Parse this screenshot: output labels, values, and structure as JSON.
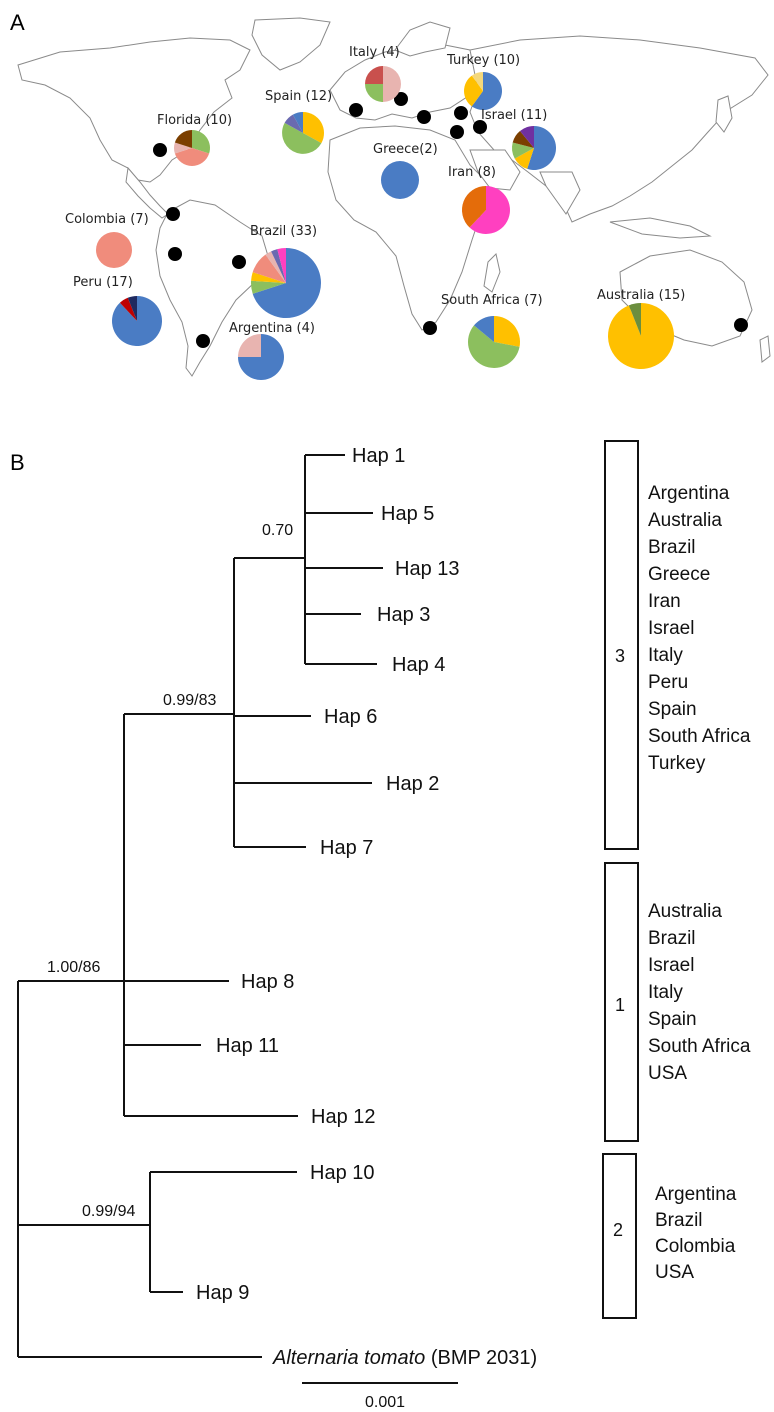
{
  "panel_a": {
    "letter": "A",
    "regions": [
      {
        "id": "italy",
        "label": "Italy (4)",
        "slices": [
          [
            "#e8b4b0",
            0.5
          ],
          [
            "#8cbf5e",
            0.25
          ],
          [
            "#c9504d",
            0.25
          ]
        ]
      },
      {
        "id": "turkey",
        "label": "Turkey (10)",
        "slices": [
          [
            "#4a7cc4",
            0.6
          ],
          [
            "#ffc000",
            0.3
          ],
          [
            "#f4d87b",
            0.1
          ]
        ]
      },
      {
        "id": "spain",
        "label": "Spain (12)",
        "slices": [
          [
            "#ffc000",
            0.33
          ],
          [
            "#8cbf5e",
            0.5
          ],
          [
            "#6a6ab0",
            0.09
          ],
          [
            "#4a7cc4",
            0.08
          ]
        ]
      },
      {
        "id": "florida",
        "label": "Florida (10)",
        "slices": [
          [
            "#8cbf5e",
            0.3
          ],
          [
            "#f08c7c",
            0.4
          ],
          [
            "#e8b4b0",
            0.1
          ],
          [
            "#7b3f00",
            0.2
          ]
        ]
      },
      {
        "id": "israel",
        "label": "Israel (11)",
        "slices": [
          [
            "#4a7cc4",
            0.55
          ],
          [
            "#ffc000",
            0.12
          ],
          [
            "#8cbf5e",
            0.12
          ],
          [
            "#7b3f00",
            0.1
          ],
          [
            "#7030a0",
            0.11
          ]
        ]
      },
      {
        "id": "greece",
        "label": "Greece(2)",
        "slices": [
          [
            "#4a7cc4",
            1
          ]
        ]
      },
      {
        "id": "iran",
        "label": "Iran (8)",
        "slices": [
          [
            "#ff40c0",
            0.62
          ],
          [
            "#e46c0a",
            0.38
          ]
        ]
      },
      {
        "id": "colombia",
        "label": "Colombia (7)",
        "slices": [
          [
            "#f08c7c",
            1
          ]
        ]
      },
      {
        "id": "brazil",
        "label": "Brazil (33)",
        "slices": [
          [
            "#4a7cc4",
            0.7
          ],
          [
            "#8cbf5e",
            0.06
          ],
          [
            "#ffc000",
            0.04
          ],
          [
            "#f08c7c",
            0.1
          ],
          [
            "#e8b4b0",
            0.03
          ],
          [
            "#6a6ab0",
            0.03
          ],
          [
            "#ff40c0",
            0.04
          ]
        ]
      },
      {
        "id": "peru",
        "label": "Peru (17)",
        "slices": [
          [
            "#4a7cc4",
            0.88
          ],
          [
            "#c00000",
            0.06
          ],
          [
            "#1f2a60",
            0.06
          ]
        ]
      },
      {
        "id": "south_africa",
        "label": "South Africa (7)",
        "slices": [
          [
            "#ffc000",
            0.28
          ],
          [
            "#8cbf5e",
            0.58
          ],
          [
            "#4a7cc4",
            0.14
          ]
        ]
      },
      {
        "id": "australia",
        "label": "Australia (15)",
        "slices": [
          [
            "#ffc000",
            0.94
          ],
          [
            "#6b8e3e",
            0.06
          ]
        ]
      },
      {
        "id": "argentina",
        "label": "Argentina (4)",
        "slices": [
          [
            "#4a7cc4",
            0.75
          ],
          [
            "#e8b4b0",
            0.25
          ]
        ]
      }
    ]
  },
  "panel_b": {
    "letter": "B",
    "haplotypes": [
      "Hap 1",
      "Hap 5",
      "Hap 13",
      "Hap 3",
      "Hap 4",
      "Hap 6",
      "Hap 2",
      "Hap 7",
      "Hap 8",
      "Hap 11",
      "Hap 12",
      "Hap 10",
      "Hap 9"
    ],
    "outgroup": {
      "italic": "Alternaria tomato",
      "rest": " (BMP 2031)"
    },
    "supports": [
      "0.70",
      "0.99/83",
      "1.00/86",
      "0.99/94"
    ],
    "scale_label": "0.001",
    "clades": [
      {
        "number": "3",
        "countries": [
          "Argentina",
          "Australia",
          "Brazil",
          "Greece",
          "Iran",
          "Israel",
          "Italy",
          "Peru",
          "Spain",
          "South Africa",
          "Turkey"
        ]
      },
      {
        "number": "1",
        "countries": [
          "Australia",
          "Brazil",
          "Israel",
          "Italy",
          "Spain",
          "South Africa",
          "USA"
        ]
      },
      {
        "number": "2",
        "countries": [
          "Argentina",
          "Brazil",
          "Colombia",
          "USA"
        ]
      }
    ]
  }
}
